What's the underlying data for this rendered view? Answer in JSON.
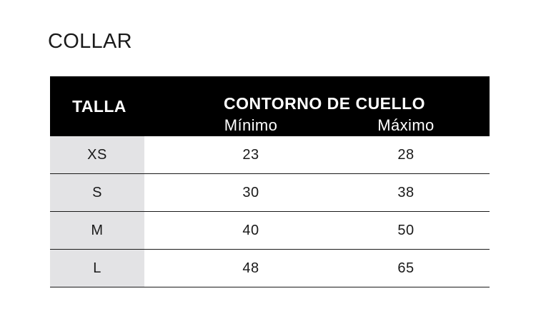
{
  "title": "COLLAR",
  "table": {
    "header": {
      "size": "TALLA",
      "neck": "CONTORNO DE CUELLO",
      "min": "Mínimo",
      "max": "Máximo"
    },
    "rows": [
      {
        "size": "XS",
        "min": "23",
        "max": "28"
      },
      {
        "size": "S",
        "min": "30",
        "max": "38"
      },
      {
        "size": "M",
        "min": "40",
        "max": "50"
      },
      {
        "size": "L",
        "min": "48",
        "max": "65"
      }
    ]
  }
}
